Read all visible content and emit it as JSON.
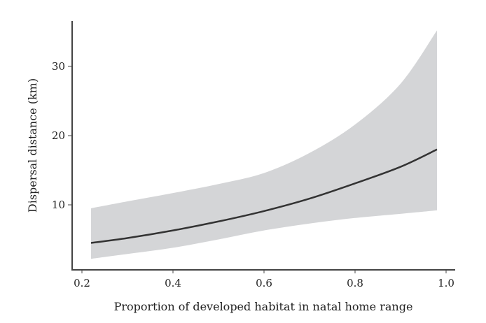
{
  "chart_data": {
    "type": "line",
    "title": "",
    "xlabel": "Proportion of developed habitat in natal home range",
    "ylabel": "Dispersal distance (km)",
    "xlim": [
      0.177,
      1.02
    ],
    "ylim": [
      0.6,
      36.5
    ],
    "xticks": [
      0.2,
      0.4,
      0.6,
      0.8,
      1.0
    ],
    "xtick_labels": [
      "0.2",
      "0.4",
      "0.6",
      "0.8",
      "1.0"
    ],
    "yticks": [
      10,
      20,
      30
    ],
    "ytick_labels": [
      "10",
      "20",
      "30"
    ],
    "grid": false,
    "x": [
      0.22,
      0.3,
      0.4,
      0.5,
      0.6,
      0.7,
      0.8,
      0.9,
      0.98
    ],
    "series": [
      {
        "name": "fit",
        "values": [
          4.5,
          5.2,
          6.3,
          7.6,
          9.1,
          10.9,
          13.1,
          15.5,
          18.0
        ],
        "color": "#333333"
      },
      {
        "name": "lower",
        "values": [
          2.2,
          2.9,
          3.8,
          5.0,
          6.3,
          7.3,
          8.1,
          8.7,
          9.2
        ]
      },
      {
        "name": "upper",
        "values": [
          9.5,
          10.5,
          11.7,
          13.0,
          14.6,
          17.5,
          21.6,
          27.5,
          35.2
        ]
      }
    ],
    "band_color": "#d4d5d7"
  }
}
